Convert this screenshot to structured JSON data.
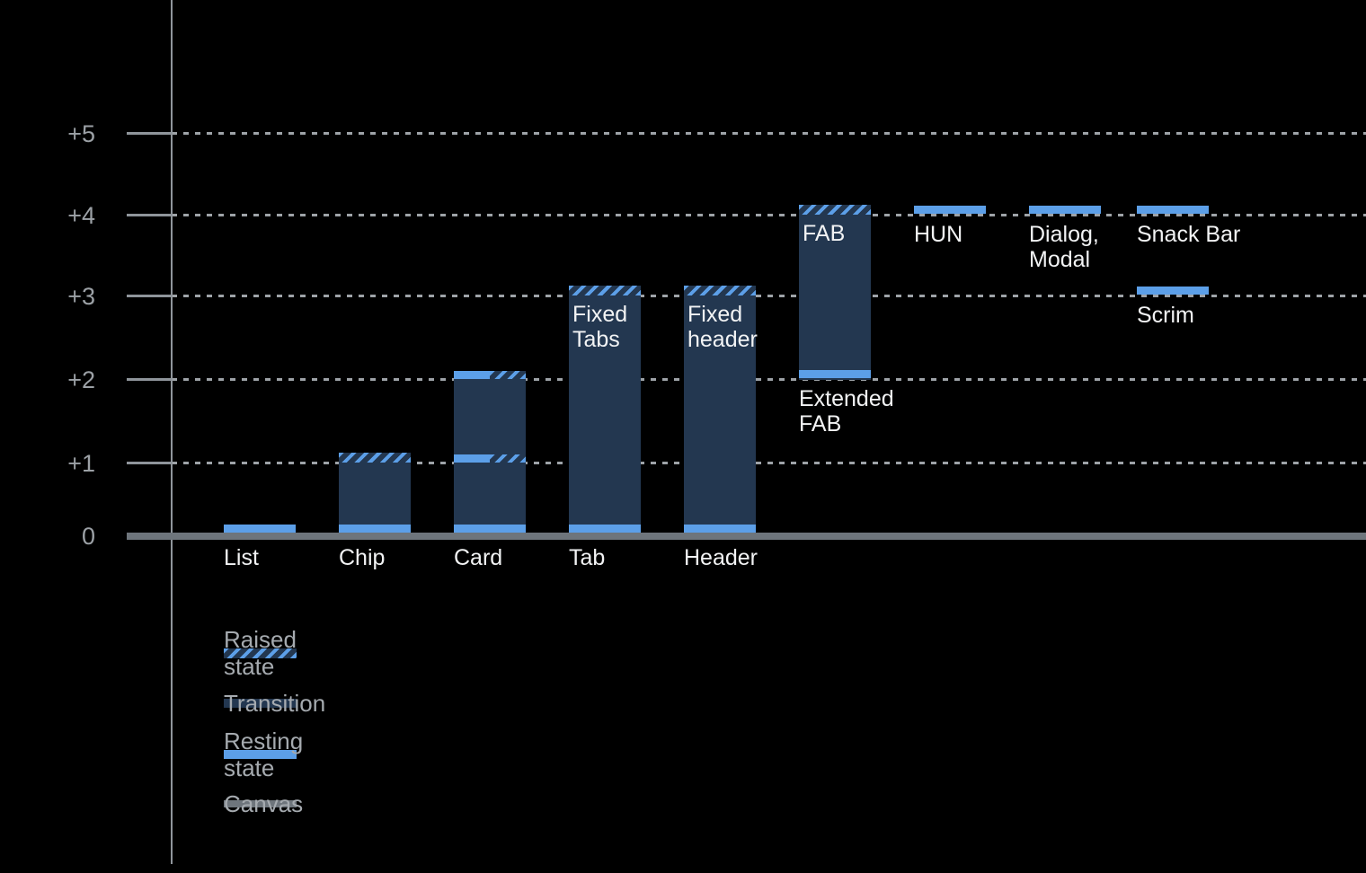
{
  "colors": {
    "background": "#000000",
    "resting_blue": "#5C9FE8",
    "transition_navy": "#233750",
    "canvas_gray": "#6E757C",
    "axis_gray": "#8F959B",
    "gridline_gray": "#9EA3A8",
    "tick_label_gray": "#9CA1A6",
    "legend_text_gray": "#A5AAAF",
    "label_white": "#F2F3F4"
  },
  "chart_data": {
    "type": "bar",
    "axis_range": [
      0,
      5
    ],
    "grid": "horizontal dotted lines at +1 through +5",
    "legend_position": "bottom-left",
    "y_ticks": [
      {
        "label": "+5",
        "level": 5
      },
      {
        "label": "+4",
        "level": 4
      },
      {
        "label": "+3",
        "level": 3
      },
      {
        "label": "+2",
        "level": 2
      },
      {
        "label": "+1",
        "level": 1
      },
      {
        "label": "0",
        "level": 0
      }
    ],
    "categories": [
      "List",
      "Chip",
      "Card",
      "Tab",
      "Header",
      "FAB",
      "HUN",
      "Dialog, Modal",
      "Snack Bar",
      "Scrim"
    ],
    "components": [
      {
        "name": "List",
        "axis_label": "List",
        "segments": [
          {
            "kind": "resting",
            "level": 0
          }
        ]
      },
      {
        "name": "Chip",
        "axis_label": "Chip",
        "segments": [
          {
            "kind": "raised",
            "level": 1
          },
          {
            "kind": "transition",
            "from": 0,
            "to": 1
          },
          {
            "kind": "resting",
            "level": 0
          }
        ]
      },
      {
        "name": "Card",
        "axis_label": "Card",
        "segments": [
          {
            "kind": "resting_raised",
            "level": 2
          },
          {
            "kind": "transition",
            "from": 1,
            "to": 2
          },
          {
            "kind": "resting_raised",
            "level": 1
          },
          {
            "kind": "transition",
            "from": 0,
            "to": 1
          },
          {
            "kind": "resting",
            "level": 0
          }
        ]
      },
      {
        "name": "Tab",
        "axis_label": "Tab",
        "inner_label": "Fixed\nTabs",
        "segments": [
          {
            "kind": "raised",
            "level": 3
          },
          {
            "kind": "transition",
            "from": 0,
            "to": 3
          },
          {
            "kind": "resting",
            "level": 0
          }
        ]
      },
      {
        "name": "Header",
        "axis_label": "Header",
        "inner_label": "Fixed\nheader",
        "segments": [
          {
            "kind": "raised",
            "level": 3
          },
          {
            "kind": "transition",
            "from": 0,
            "to": 3
          },
          {
            "kind": "resting",
            "level": 0
          }
        ]
      },
      {
        "name": "FAB",
        "inner_label": "FAB",
        "caption": {
          "text": "Extended\nFAB",
          "below_level": 2
        },
        "segments": [
          {
            "kind": "raised",
            "level": 4
          },
          {
            "kind": "transition",
            "from": 2,
            "to": 4
          },
          {
            "kind": "resting",
            "level": 2
          }
        ]
      },
      {
        "name": "HUN",
        "caption": {
          "text": "HUN",
          "below_level": 4
        },
        "segments": [
          {
            "kind": "resting",
            "level": 4,
            "floating": true
          }
        ]
      },
      {
        "name": "Dialog, Modal",
        "caption": {
          "text": "Dialog,\nModal",
          "below_level": 4
        },
        "segments": [
          {
            "kind": "resting",
            "level": 4,
            "floating": true
          }
        ]
      },
      {
        "name": "Snack Bar",
        "caption": {
          "text": "Snack Bar",
          "below_level": 4
        },
        "segments": [
          {
            "kind": "resting",
            "level": 4,
            "floating": true
          }
        ]
      },
      {
        "name": "Scrim",
        "caption": {
          "text": "Scrim",
          "below_level": 3
        },
        "segments": [
          {
            "kind": "resting",
            "level": 3,
            "floating": true
          }
        ]
      }
    ]
  },
  "legend": {
    "items": [
      {
        "label": "Raised state",
        "swatch": "raised"
      },
      {
        "label": "Transition",
        "swatch": "transition"
      },
      {
        "label": "Resting state",
        "swatch": "resting"
      },
      {
        "label": "Canvas",
        "swatch": "canvas"
      }
    ]
  }
}
